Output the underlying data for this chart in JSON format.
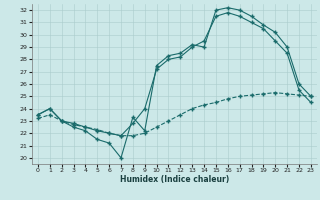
{
  "xlabel": "Humidex (Indice chaleur)",
  "bg_color": "#cce8e8",
  "line_color": "#1a6b6b",
  "grid_color": "#aacccc",
  "xlim": [
    -0.5,
    23.5
  ],
  "ylim": [
    19.5,
    32.5
  ],
  "xticks": [
    0,
    1,
    2,
    3,
    4,
    5,
    6,
    7,
    8,
    9,
    10,
    11,
    12,
    13,
    14,
    15,
    16,
    17,
    18,
    19,
    20,
    21,
    22,
    23
  ],
  "yticks": [
    20,
    21,
    22,
    23,
    24,
    25,
    26,
    27,
    28,
    29,
    30,
    31,
    32
  ],
  "curve1_x": [
    0,
    1,
    2,
    3,
    4,
    5,
    6,
    7,
    8,
    9,
    10,
    11,
    12,
    13,
    14,
    15,
    16,
    17,
    18,
    19,
    20,
    21,
    22,
    23
  ],
  "curve1_y": [
    23.5,
    24.0,
    23.0,
    22.5,
    22.2,
    21.5,
    21.2,
    20.0,
    23.3,
    22.2,
    27.5,
    28.3,
    28.5,
    29.2,
    29.0,
    32.0,
    32.2,
    32.0,
    31.5,
    30.8,
    30.2,
    29.0,
    26.0,
    25.0
  ],
  "curve2_x": [
    0,
    1,
    2,
    3,
    4,
    5,
    6,
    7,
    8,
    9,
    10,
    11,
    12,
    13,
    14,
    15,
    16,
    17,
    18,
    19,
    20,
    21,
    22,
    23
  ],
  "curve2_y": [
    23.5,
    24.0,
    23.0,
    22.8,
    22.5,
    22.2,
    22.0,
    21.8,
    22.8,
    24.0,
    27.2,
    28.0,
    28.2,
    29.0,
    29.5,
    31.5,
    31.8,
    31.5,
    31.0,
    30.5,
    29.5,
    28.5,
    25.5,
    24.5
  ],
  "curve3_x": [
    0,
    1,
    2,
    3,
    4,
    5,
    6,
    7,
    8,
    9,
    10,
    11,
    12,
    13,
    14,
    15,
    16,
    17,
    18,
    19,
    20,
    21,
    22,
    23
  ],
  "curve3_y": [
    23.2,
    23.5,
    23.0,
    22.7,
    22.5,
    22.3,
    22.0,
    21.8,
    21.8,
    22.0,
    22.5,
    23.0,
    23.5,
    24.0,
    24.3,
    24.5,
    24.8,
    25.0,
    25.1,
    25.2,
    25.3,
    25.2,
    25.1,
    25.0
  ]
}
